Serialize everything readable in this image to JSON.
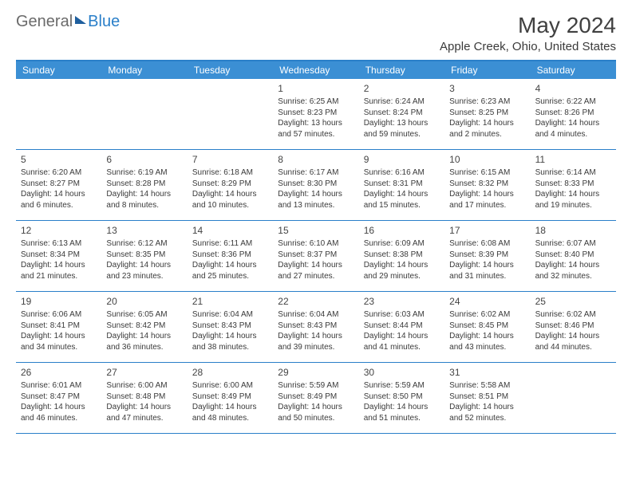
{
  "logo": {
    "part1": "General",
    "part2": "Blue"
  },
  "title": "May 2024",
  "location": "Apple Creek, Ohio, United States",
  "colors": {
    "header_bg": "#3b8fd4",
    "rule": "#2a7fc9",
    "logo_gray": "#6a6a6a",
    "logo_blue": "#2a7fc9",
    "text": "#3a3a3a"
  },
  "day_names": [
    "Sunday",
    "Monday",
    "Tuesday",
    "Wednesday",
    "Thursday",
    "Friday",
    "Saturday"
  ],
  "weeks": [
    [
      null,
      null,
      null,
      {
        "d": "1",
        "sr": "Sunrise: 6:25 AM",
        "ss": "Sunset: 8:23 PM",
        "dl1": "Daylight: 13 hours",
        "dl2": "and 57 minutes."
      },
      {
        "d": "2",
        "sr": "Sunrise: 6:24 AM",
        "ss": "Sunset: 8:24 PM",
        "dl1": "Daylight: 13 hours",
        "dl2": "and 59 minutes."
      },
      {
        "d": "3",
        "sr": "Sunrise: 6:23 AM",
        "ss": "Sunset: 8:25 PM",
        "dl1": "Daylight: 14 hours",
        "dl2": "and 2 minutes."
      },
      {
        "d": "4",
        "sr": "Sunrise: 6:22 AM",
        "ss": "Sunset: 8:26 PM",
        "dl1": "Daylight: 14 hours",
        "dl2": "and 4 minutes."
      }
    ],
    [
      {
        "d": "5",
        "sr": "Sunrise: 6:20 AM",
        "ss": "Sunset: 8:27 PM",
        "dl1": "Daylight: 14 hours",
        "dl2": "and 6 minutes."
      },
      {
        "d": "6",
        "sr": "Sunrise: 6:19 AM",
        "ss": "Sunset: 8:28 PM",
        "dl1": "Daylight: 14 hours",
        "dl2": "and 8 minutes."
      },
      {
        "d": "7",
        "sr": "Sunrise: 6:18 AM",
        "ss": "Sunset: 8:29 PM",
        "dl1": "Daylight: 14 hours",
        "dl2": "and 10 minutes."
      },
      {
        "d": "8",
        "sr": "Sunrise: 6:17 AM",
        "ss": "Sunset: 8:30 PM",
        "dl1": "Daylight: 14 hours",
        "dl2": "and 13 minutes."
      },
      {
        "d": "9",
        "sr": "Sunrise: 6:16 AM",
        "ss": "Sunset: 8:31 PM",
        "dl1": "Daylight: 14 hours",
        "dl2": "and 15 minutes."
      },
      {
        "d": "10",
        "sr": "Sunrise: 6:15 AM",
        "ss": "Sunset: 8:32 PM",
        "dl1": "Daylight: 14 hours",
        "dl2": "and 17 minutes."
      },
      {
        "d": "11",
        "sr": "Sunrise: 6:14 AM",
        "ss": "Sunset: 8:33 PM",
        "dl1": "Daylight: 14 hours",
        "dl2": "and 19 minutes."
      }
    ],
    [
      {
        "d": "12",
        "sr": "Sunrise: 6:13 AM",
        "ss": "Sunset: 8:34 PM",
        "dl1": "Daylight: 14 hours",
        "dl2": "and 21 minutes."
      },
      {
        "d": "13",
        "sr": "Sunrise: 6:12 AM",
        "ss": "Sunset: 8:35 PM",
        "dl1": "Daylight: 14 hours",
        "dl2": "and 23 minutes."
      },
      {
        "d": "14",
        "sr": "Sunrise: 6:11 AM",
        "ss": "Sunset: 8:36 PM",
        "dl1": "Daylight: 14 hours",
        "dl2": "and 25 minutes."
      },
      {
        "d": "15",
        "sr": "Sunrise: 6:10 AM",
        "ss": "Sunset: 8:37 PM",
        "dl1": "Daylight: 14 hours",
        "dl2": "and 27 minutes."
      },
      {
        "d": "16",
        "sr": "Sunrise: 6:09 AM",
        "ss": "Sunset: 8:38 PM",
        "dl1": "Daylight: 14 hours",
        "dl2": "and 29 minutes."
      },
      {
        "d": "17",
        "sr": "Sunrise: 6:08 AM",
        "ss": "Sunset: 8:39 PM",
        "dl1": "Daylight: 14 hours",
        "dl2": "and 31 minutes."
      },
      {
        "d": "18",
        "sr": "Sunrise: 6:07 AM",
        "ss": "Sunset: 8:40 PM",
        "dl1": "Daylight: 14 hours",
        "dl2": "and 32 minutes."
      }
    ],
    [
      {
        "d": "19",
        "sr": "Sunrise: 6:06 AM",
        "ss": "Sunset: 8:41 PM",
        "dl1": "Daylight: 14 hours",
        "dl2": "and 34 minutes."
      },
      {
        "d": "20",
        "sr": "Sunrise: 6:05 AM",
        "ss": "Sunset: 8:42 PM",
        "dl1": "Daylight: 14 hours",
        "dl2": "and 36 minutes."
      },
      {
        "d": "21",
        "sr": "Sunrise: 6:04 AM",
        "ss": "Sunset: 8:43 PM",
        "dl1": "Daylight: 14 hours",
        "dl2": "and 38 minutes."
      },
      {
        "d": "22",
        "sr": "Sunrise: 6:04 AM",
        "ss": "Sunset: 8:43 PM",
        "dl1": "Daylight: 14 hours",
        "dl2": "and 39 minutes."
      },
      {
        "d": "23",
        "sr": "Sunrise: 6:03 AM",
        "ss": "Sunset: 8:44 PM",
        "dl1": "Daylight: 14 hours",
        "dl2": "and 41 minutes."
      },
      {
        "d": "24",
        "sr": "Sunrise: 6:02 AM",
        "ss": "Sunset: 8:45 PM",
        "dl1": "Daylight: 14 hours",
        "dl2": "and 43 minutes."
      },
      {
        "d": "25",
        "sr": "Sunrise: 6:02 AM",
        "ss": "Sunset: 8:46 PM",
        "dl1": "Daylight: 14 hours",
        "dl2": "and 44 minutes."
      }
    ],
    [
      {
        "d": "26",
        "sr": "Sunrise: 6:01 AM",
        "ss": "Sunset: 8:47 PM",
        "dl1": "Daylight: 14 hours",
        "dl2": "and 46 minutes."
      },
      {
        "d": "27",
        "sr": "Sunrise: 6:00 AM",
        "ss": "Sunset: 8:48 PM",
        "dl1": "Daylight: 14 hours",
        "dl2": "and 47 minutes."
      },
      {
        "d": "28",
        "sr": "Sunrise: 6:00 AM",
        "ss": "Sunset: 8:49 PM",
        "dl1": "Daylight: 14 hours",
        "dl2": "and 48 minutes."
      },
      {
        "d": "29",
        "sr": "Sunrise: 5:59 AM",
        "ss": "Sunset: 8:49 PM",
        "dl1": "Daylight: 14 hours",
        "dl2": "and 50 minutes."
      },
      {
        "d": "30",
        "sr": "Sunrise: 5:59 AM",
        "ss": "Sunset: 8:50 PM",
        "dl1": "Daylight: 14 hours",
        "dl2": "and 51 minutes."
      },
      {
        "d": "31",
        "sr": "Sunrise: 5:58 AM",
        "ss": "Sunset: 8:51 PM",
        "dl1": "Daylight: 14 hours",
        "dl2": "and 52 minutes."
      },
      null
    ]
  ]
}
